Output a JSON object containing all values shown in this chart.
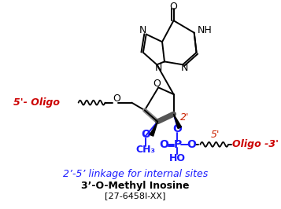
{
  "title": "3’-O-Methyl Inosine",
  "subtitle": "[27-6458I-XX]",
  "caption": "2’-5’ linkage for internal sites",
  "label_5prime_oligo": "5’- Oligo",
  "label_oligo_3prime": "Oligo -3’",
  "label_5prime": "5’",
  "label_2prime": "2’",
  "bg_color": "#ffffff",
  "black": "#000000",
  "blue": "#1a1aff",
  "red": "#cc0000",
  "dark_red": "#cc2200",
  "bond_lw": 1.4,
  "thick_lw": 4.0
}
